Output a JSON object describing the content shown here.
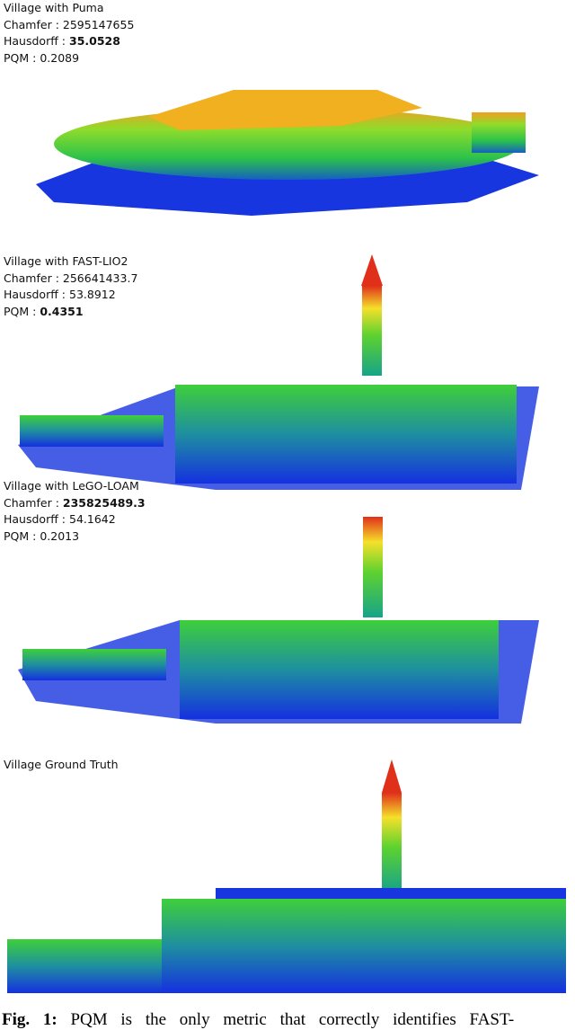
{
  "panels": [
    {
      "title": "Village with Puma",
      "metrics": [
        {
          "label": "Chamfer :",
          "value": 2595147655
        },
        {
          "label": "Hausdorff :",
          "value": 35.0528,
          "bold": true
        },
        {
          "label": "PQM :",
          "value": 0.2089
        }
      ]
    },
    {
      "title": "Village with FAST-LIO2",
      "metrics": [
        {
          "label": "Chamfer :",
          "value": 256641433.7
        },
        {
          "label": "Hausdorff :",
          "value": 53.8912
        },
        {
          "label": "PQM :",
          "value": 0.4351,
          "bold": true
        }
      ]
    },
    {
      "title": "Village with LeGO-LOAM",
      "metrics": [
        {
          "label": "Chamfer :",
          "value": 235825489.3,
          "bold": true
        },
        {
          "label": "Hausdorff :",
          "value": 54.1642
        },
        {
          "label": "PQM :",
          "value": 0.2013
        }
      ]
    },
    {
      "title": "Village Ground Truth",
      "metrics": []
    }
  ],
  "caption": {
    "prefix": "Fig. 1:",
    "text": "PQM is the only metric that correctly identifies FAST-"
  }
}
